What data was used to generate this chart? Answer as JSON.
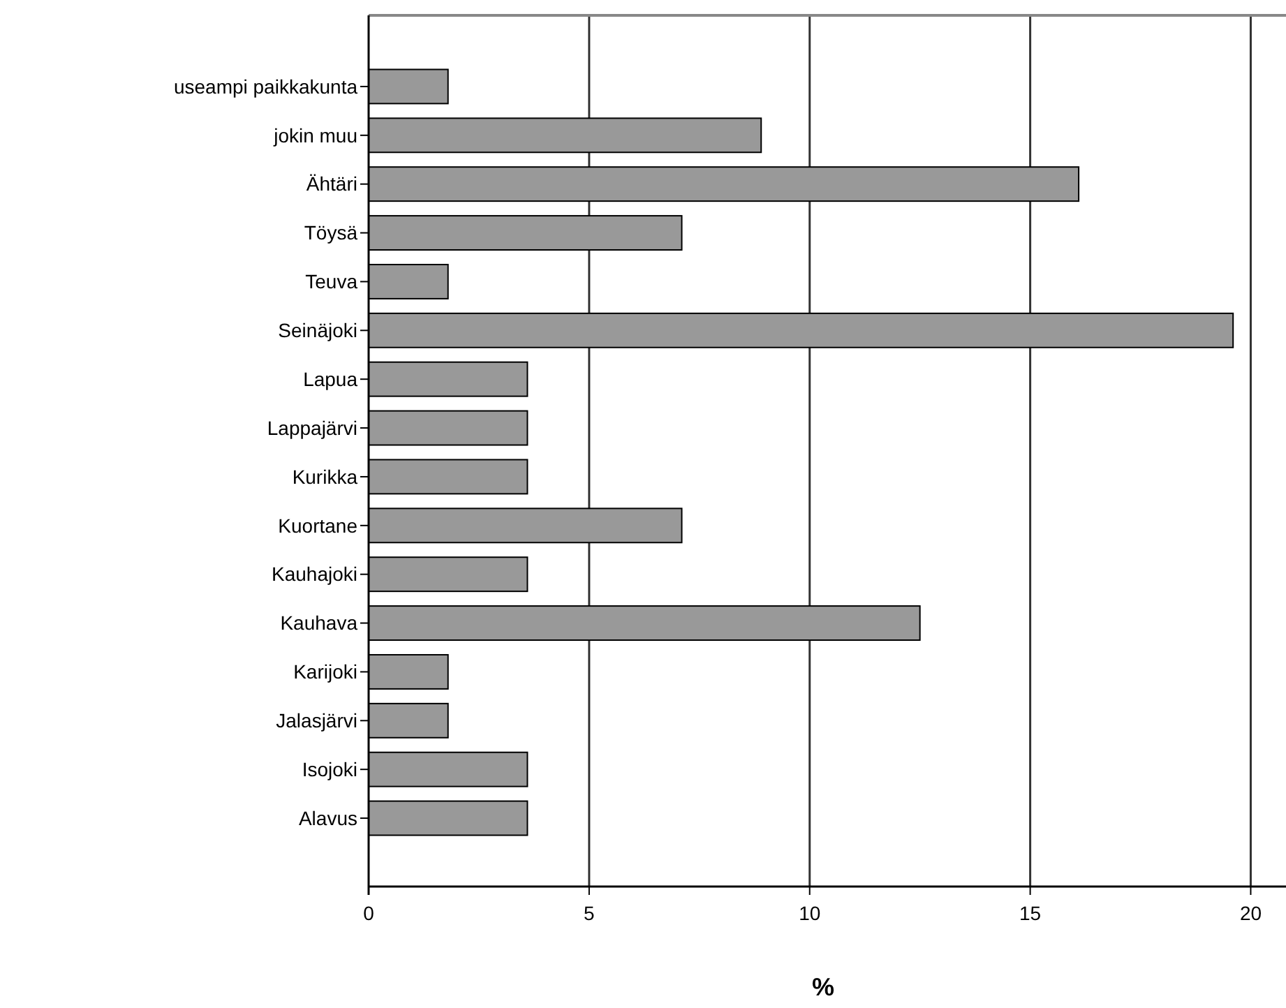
{
  "chart_data": {
    "type": "bar",
    "orientation": "horizontal",
    "xlabel": "%",
    "categories": [
      "useampi paikkakunta",
      "jokin muu",
      "Ähtäri",
      "Töysä",
      "Teuva",
      "Seinäjoki",
      "Lapua",
      "Lappajärvi",
      "Kurikka",
      "Kuortane",
      "Kauhajoki",
      "Kauhava",
      "Karijoki",
      "Jalasjärvi",
      "Isojoki",
      "Alavus"
    ],
    "values": [
      1.8,
      8.9,
      16.1,
      7.1,
      1.8,
      19.6,
      3.6,
      3.6,
      3.6,
      7.1,
      3.6,
      12.5,
      1.8,
      1.8,
      3.6,
      3.6
    ],
    "color": "#999999",
    "xlim": [
      0,
      20.8
    ],
    "xticks": [
      0,
      5,
      10,
      15,
      20
    ],
    "grid": "x"
  }
}
